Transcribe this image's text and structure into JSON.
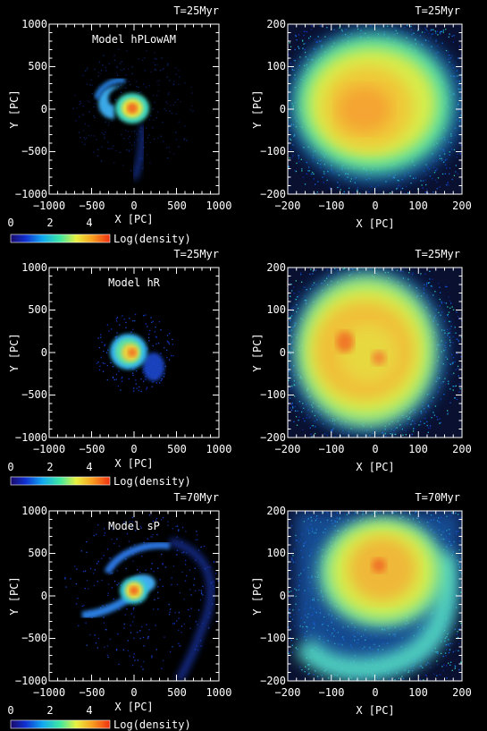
{
  "panels": [
    {
      "time": "T=25Myr",
      "model": "Model hPLowAM",
      "xlabel": "X [PC]",
      "ylabel": "Y [PC]",
      "xticks": [
        "−1000",
        "−500",
        "0",
        "500",
        "1000"
      ],
      "yticks": [
        "1000",
        "500",
        "0",
        "−500",
        "−1000"
      ],
      "xlim": [
        -1000,
        1000
      ],
      "ylim": [
        -1000,
        1000
      ]
    },
    {
      "time": "T=25Myr",
      "model": "",
      "xlabel": "X [PC]",
      "ylabel": "Y [PC]",
      "xticks": [
        "−200",
        "−100",
        "0",
        "100",
        "200"
      ],
      "yticks": [
        "200",
        "100",
        "0",
        "−100",
        "−200"
      ],
      "xlim": [
        -200,
        200
      ],
      "ylim": [
        -200,
        200
      ]
    },
    {
      "time": "T=25Myr",
      "model": "Model hR",
      "xlabel": "X [PC]",
      "ylabel": "Y [PC]",
      "xticks": [
        "−1000",
        "−500",
        "0",
        "500",
        "1000"
      ],
      "yticks": [
        "1000",
        "500",
        "0",
        "−500",
        "−1000"
      ],
      "xlim": [
        -1000,
        1000
      ],
      "ylim": [
        -1000,
        1000
      ]
    },
    {
      "time": "T=25Myr",
      "model": "",
      "xlabel": "X [PC]",
      "ylabel": "Y [PC]",
      "xticks": [
        "−200",
        "−100",
        "0",
        "100",
        "200"
      ],
      "yticks": [
        "200",
        "100",
        "0",
        "−100",
        "−200"
      ],
      "xlim": [
        -200,
        200
      ],
      "ylim": [
        -200,
        200
      ]
    },
    {
      "time": "T=70Myr",
      "model": "Model sP",
      "xlabel": "X [PC]",
      "ylabel": "Y [PC]",
      "xticks": [
        "−1000",
        "−500",
        "0",
        "500",
        "1000"
      ],
      "yticks": [
        "1000",
        "500",
        "0",
        "−500",
        "−1000"
      ],
      "xlim": [
        -1000,
        1000
      ],
      "ylim": [
        -1000,
        1000
      ]
    },
    {
      "time": "T=70Myr",
      "model": "",
      "xlabel": "X [PC]",
      "ylabel": "Y [PC]",
      "xticks": [
        "−200",
        "−100",
        "0",
        "100",
        "200"
      ],
      "yticks": [
        "200",
        "100",
        "0",
        "−100",
        "−200"
      ],
      "xlim": [
        -200,
        200
      ],
      "ylim": [
        -200,
        200
      ]
    }
  ],
  "colorbar": {
    "ticks": [
      "0",
      "2",
      "4"
    ],
    "label": "Log(density)",
    "range": [
      0,
      5.5
    ]
  },
  "chart_data": [
    {
      "type": "heatmap",
      "title": "Model hPLowAM",
      "time": "T=25Myr",
      "xlabel": "X [PC]",
      "ylabel": "Y [PC]",
      "xlim": [
        -1000,
        1000
      ],
      "ylim": [
        -1000,
        1000
      ],
      "colorbar_label": "Log(density)"
    },
    {
      "type": "heatmap",
      "title": "",
      "time": "T=25Myr",
      "xlabel": "X [PC]",
      "ylabel": "Y [PC]",
      "xlim": [
        -200,
        200
      ],
      "ylim": [
        -200,
        200
      ],
      "colorbar_label": "Log(density)"
    },
    {
      "type": "heatmap",
      "title": "Model hR",
      "time": "T=25Myr",
      "xlabel": "X [PC]",
      "ylabel": "Y [PC]",
      "xlim": [
        -1000,
        1000
      ],
      "ylim": [
        -1000,
        1000
      ],
      "colorbar_label": "Log(density)"
    },
    {
      "type": "heatmap",
      "title": "",
      "time": "T=25Myr",
      "xlabel": "X [PC]",
      "ylabel": "Y [PC]",
      "xlim": [
        -200,
        200
      ],
      "ylim": [
        -200,
        200
      ],
      "colorbar_label": "Log(density)"
    },
    {
      "type": "heatmap",
      "title": "Model sP",
      "time": "T=70Myr",
      "xlabel": "X [PC]",
      "ylabel": "Y [PC]",
      "xlim": [
        -1000,
        1000
      ],
      "ylim": [
        -1000,
        1000
      ],
      "colorbar_label": "Log(density)"
    },
    {
      "type": "heatmap",
      "title": "",
      "time": "T=70Myr",
      "xlabel": "X [PC]",
      "ylabel": "Y [PC]",
      "xlim": [
        -200,
        200
      ],
      "ylim": [
        -200,
        200
      ],
      "colorbar_label": "Log(density)"
    }
  ]
}
